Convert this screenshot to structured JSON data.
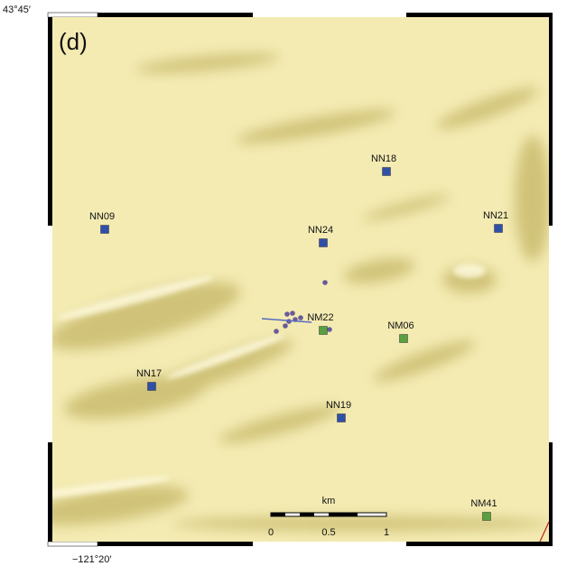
{
  "panel_label": "(d)",
  "corner_labels": {
    "latitude": "43°45′",
    "longitude": "−121°20′"
  },
  "stations": [
    {
      "label": "NN18",
      "color": "#3050a8"
    },
    {
      "label": "NN09",
      "color": "#3050a8"
    },
    {
      "label": "NN24",
      "color": "#3050a8"
    },
    {
      "label": "NN21",
      "color": "#3050a8"
    },
    {
      "label": "NM22",
      "color": "#5aa040"
    },
    {
      "label": "NM06",
      "color": "#5aa040"
    },
    {
      "label": "NN17",
      "color": "#3050a8"
    },
    {
      "label": "NN19",
      "color": "#3050a8"
    },
    {
      "label": "NM41",
      "color": "#5aa040"
    }
  ],
  "scale_bar": {
    "unit": "km",
    "ticks": [
      "0",
      "0.5",
      "1"
    ]
  }
}
